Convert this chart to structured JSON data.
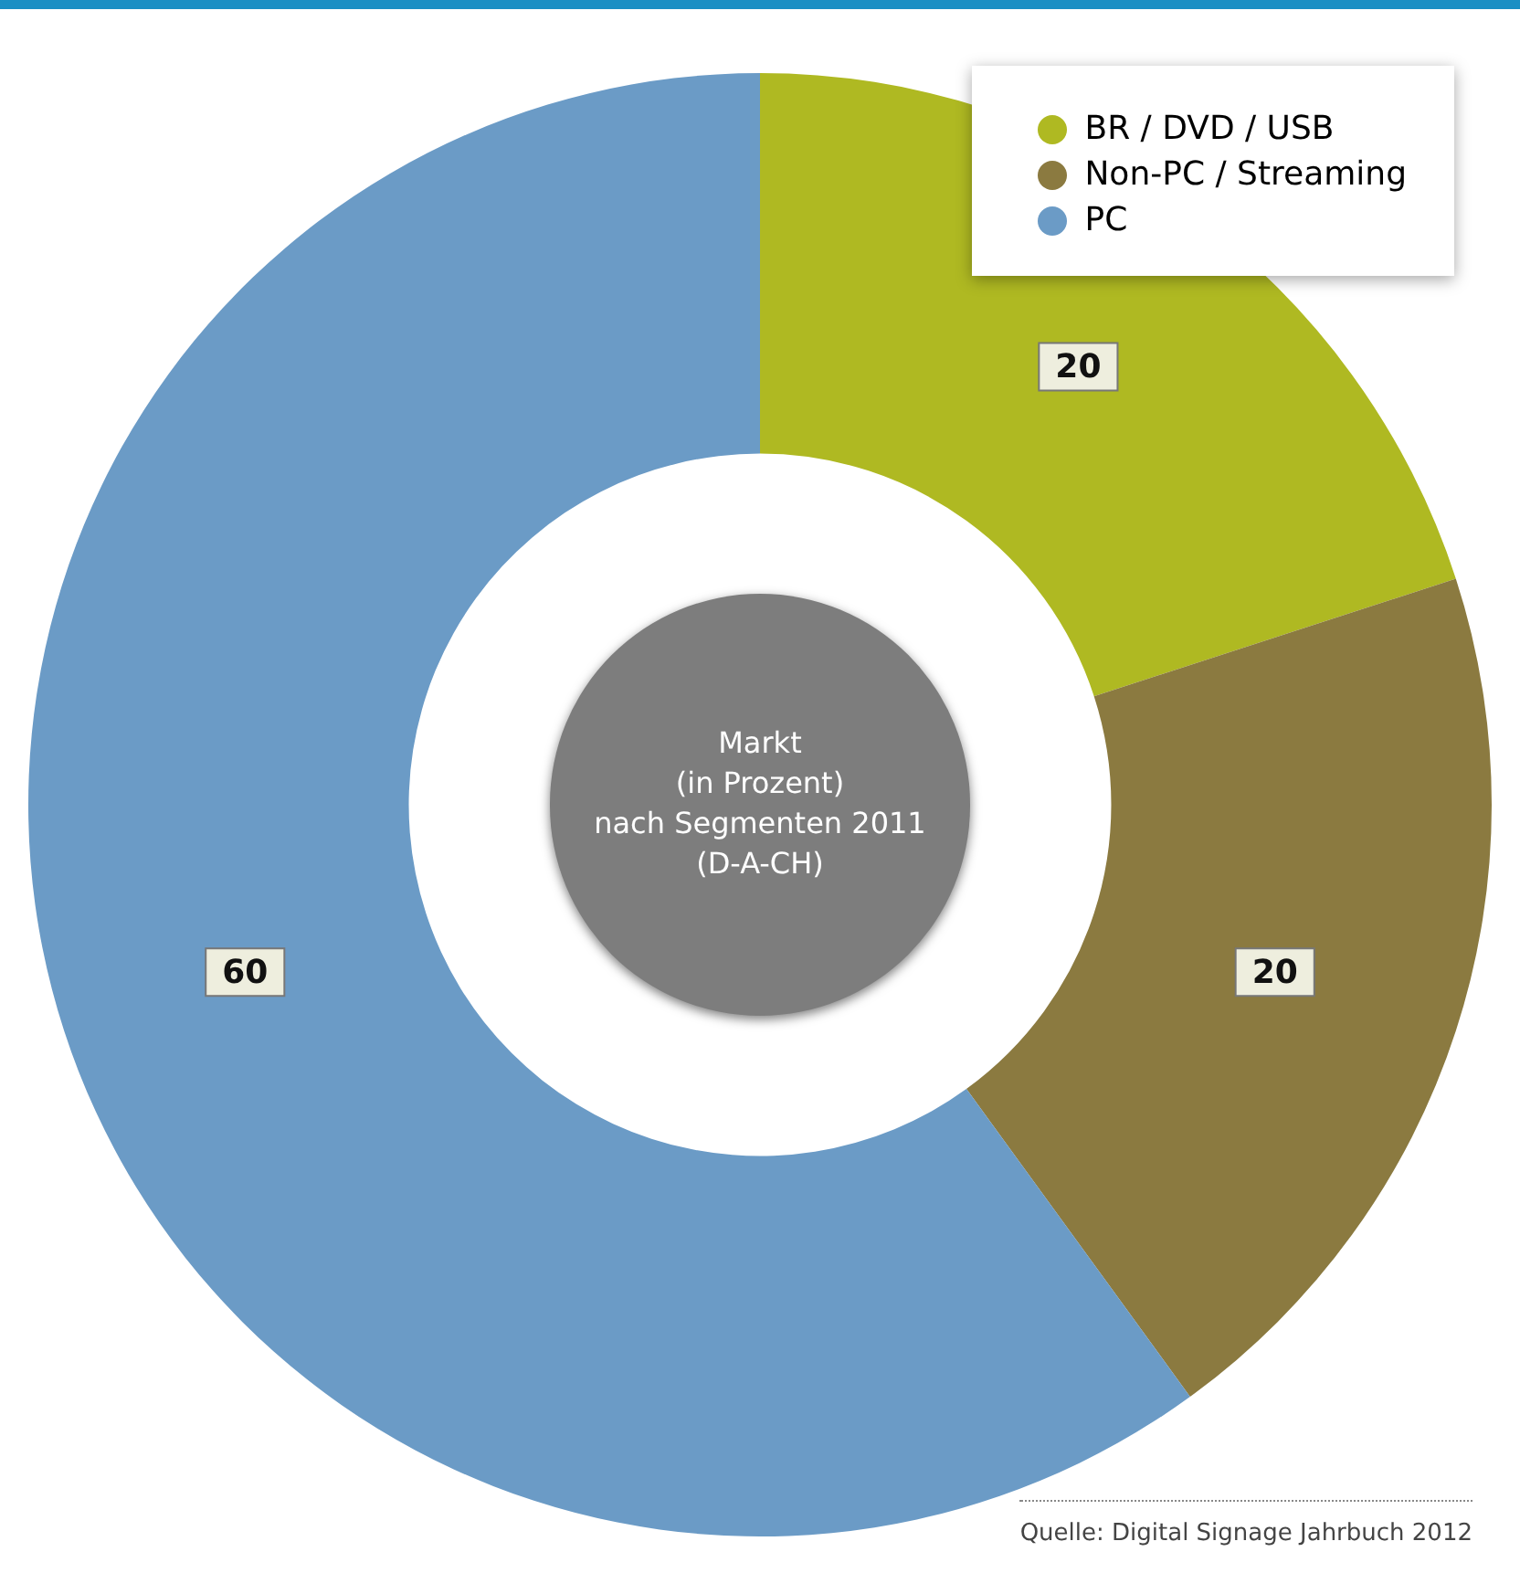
{
  "chart_data": {
    "type": "donut",
    "title": "Markt\n(in Prozent)\nnach Segmenten 2011\n(D-A-CH)",
    "categories": [
      "BR / DVD / USB",
      "Non-PC / Streaming",
      "PC"
    ],
    "values": [
      20,
      20,
      60
    ],
    "colors": [
      "#afb922",
      "#8b7a40",
      "#6b9bc6"
    ],
    "data_labels": true,
    "legend": "top right",
    "annotations": [
      "Quelle: Digital Signage Jahrbuch 2012"
    ]
  }
}
